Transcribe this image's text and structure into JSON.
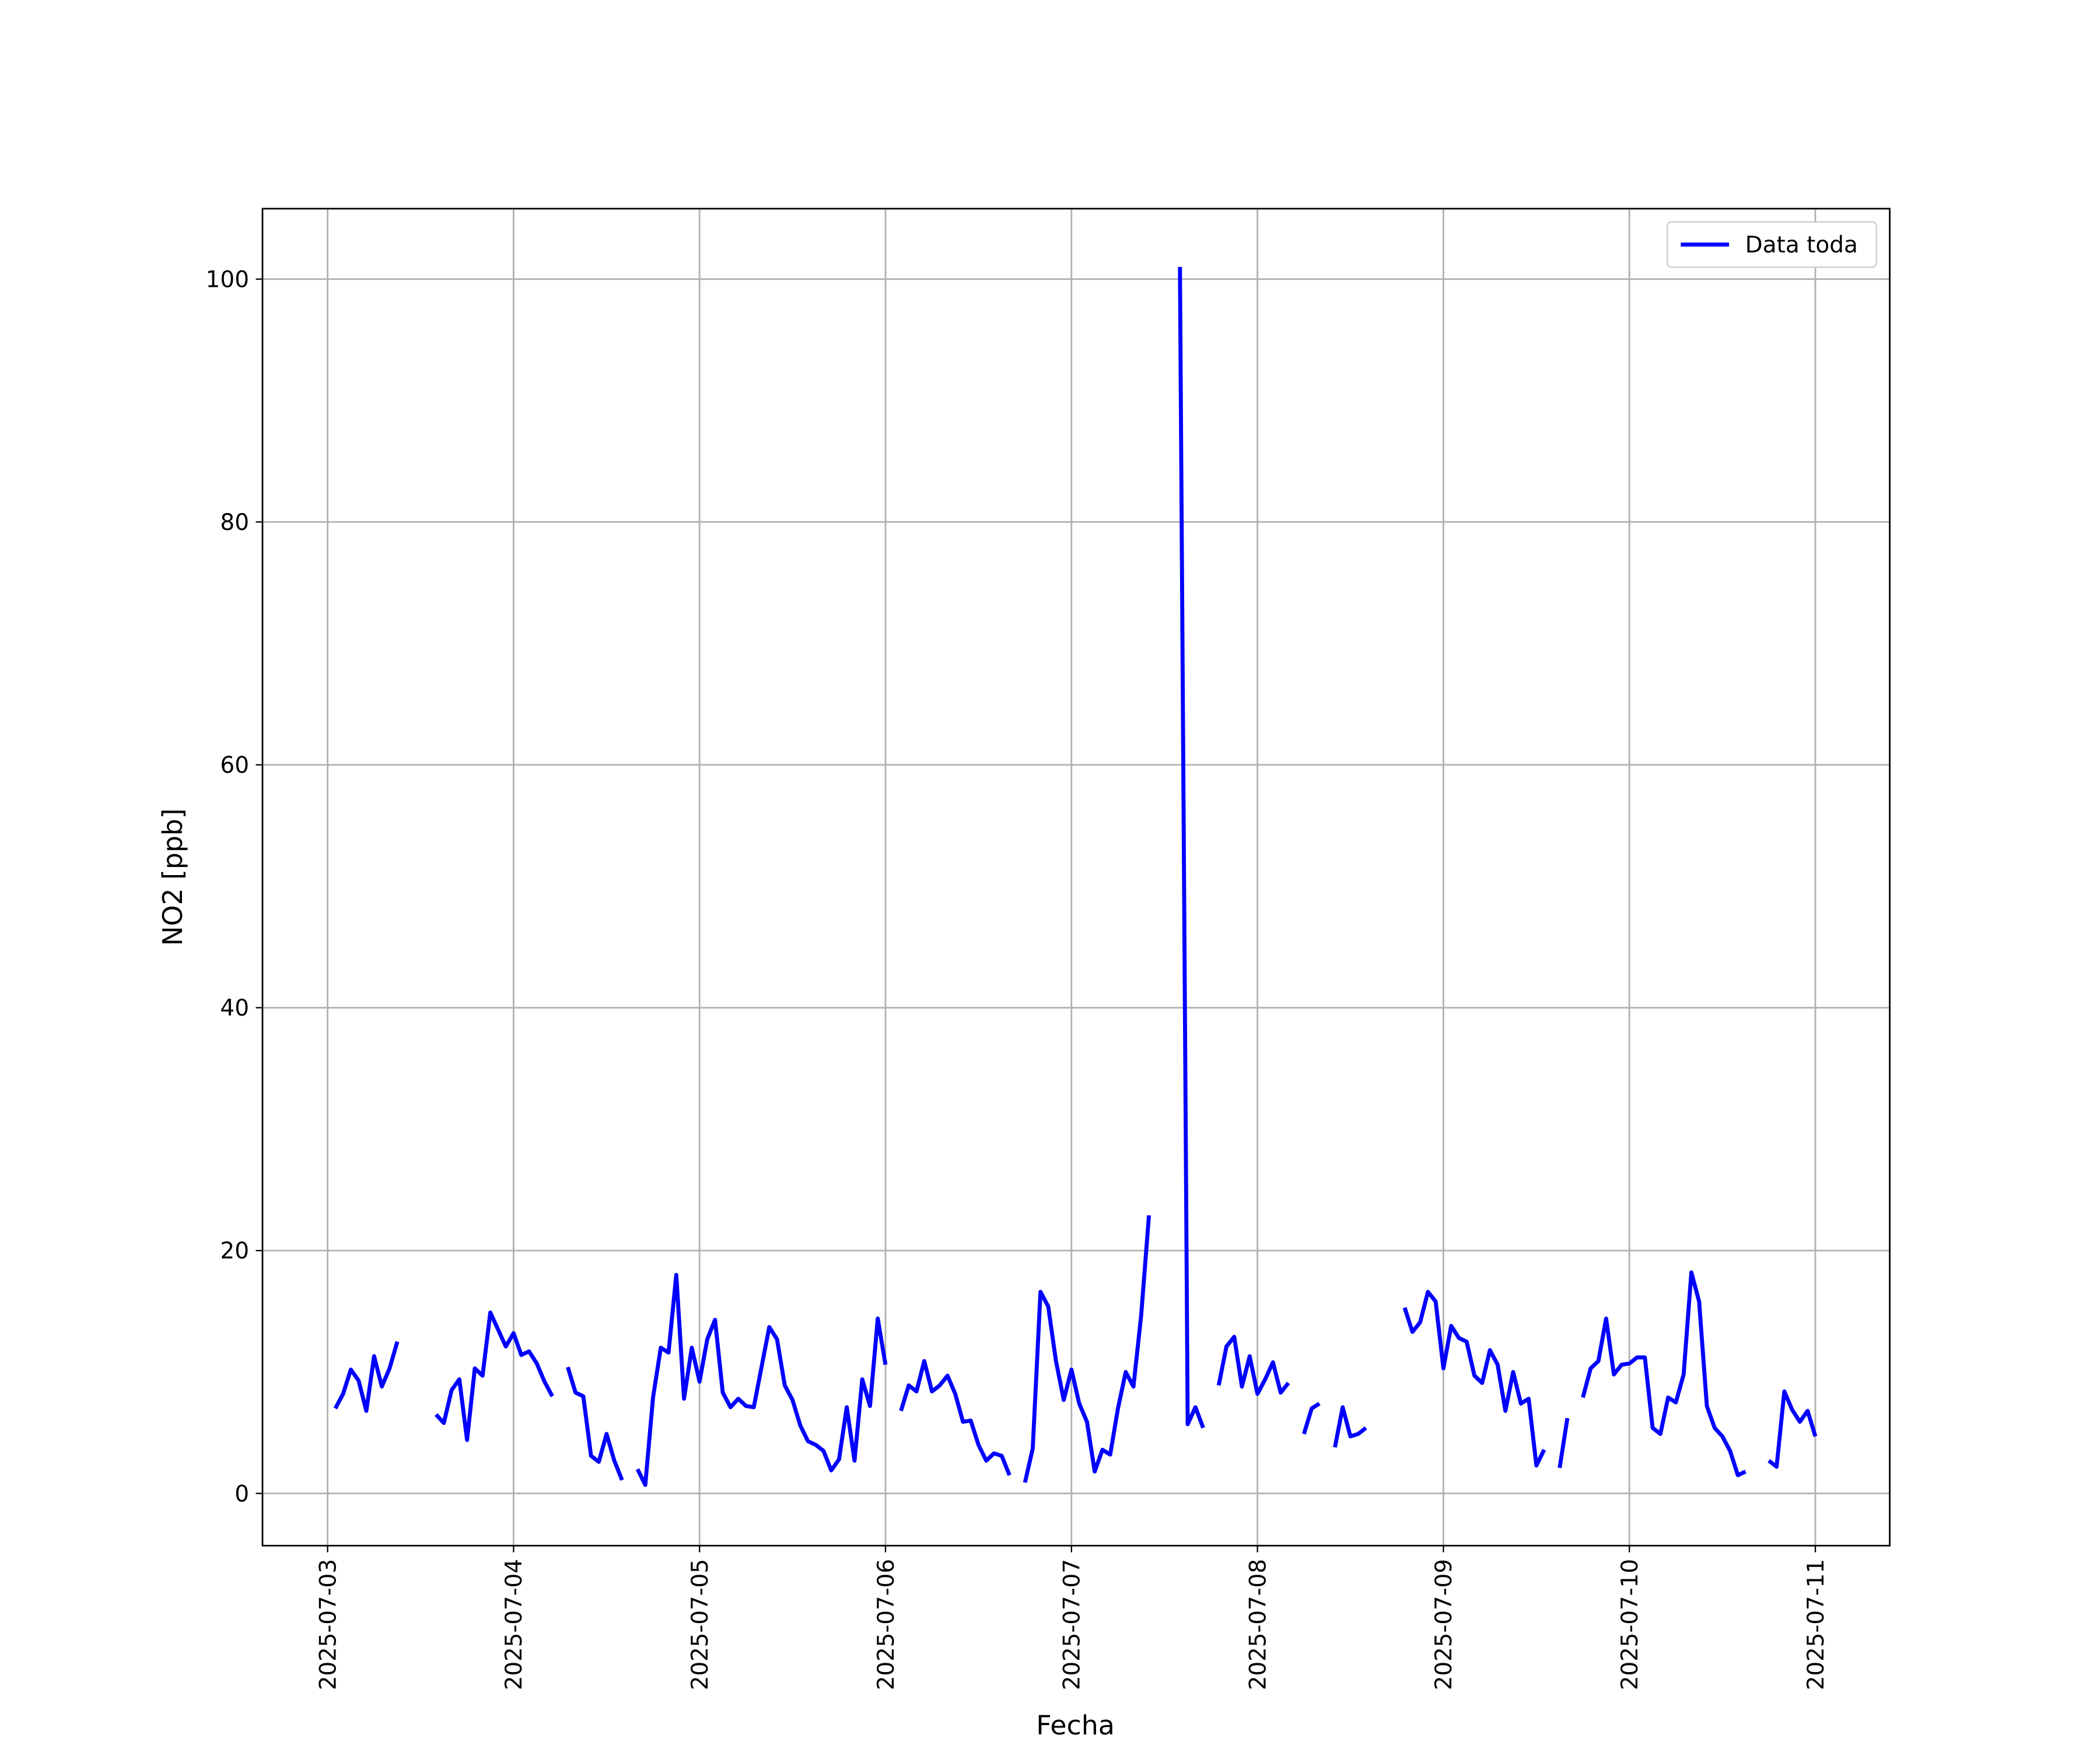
{
  "chart_data": {
    "type": "line",
    "xlabel": "Fecha",
    "ylabel": "NO2 [ppb]",
    "grid": true,
    "legend": "upper right",
    "xlim": [
      "2025-07-02T15:36",
      "2025-07-11T09:36"
    ],
    "xticks": [
      "2025-07-03",
      "2025-07-04",
      "2025-07-05",
      "2025-07-06",
      "2025-07-07",
      "2025-07-08",
      "2025-07-09",
      "2025-07-10",
      "2025-07-11"
    ],
    "ylim": [
      -4.3,
      105.8
    ],
    "yticks": [
      0,
      20,
      40,
      60,
      80,
      100
    ],
    "x": [
      "2025-07-03T01:00",
      "2025-07-03T02:00",
      "2025-07-03T03:00",
      "2025-07-03T04:00",
      "2025-07-03T05:00",
      "2025-07-03T06:00",
      "2025-07-03T07:00",
      "2025-07-03T08:00",
      "2025-07-03T09:00",
      "2025-07-03T10:00",
      "2025-07-03T11:00",
      "2025-07-03T12:00",
      "2025-07-03T13:00",
      "2025-07-03T14:00",
      "2025-07-03T15:00",
      "2025-07-03T16:00",
      "2025-07-03T17:00",
      "2025-07-03T18:00",
      "2025-07-03T19:00",
      "2025-07-03T20:00",
      "2025-07-03T21:00",
      "2025-07-03T22:00",
      "2025-07-03T23:00",
      "2025-07-04T00:00",
      "2025-07-04T01:00",
      "2025-07-04T02:00",
      "2025-07-04T03:00",
      "2025-07-04T04:00",
      "2025-07-04T05:00",
      "2025-07-04T06:00",
      "2025-07-04T07:00",
      "2025-07-04T08:00",
      "2025-07-04T09:00",
      "2025-07-04T10:00",
      "2025-07-04T11:00",
      "2025-07-04T12:00",
      "2025-07-04T13:00",
      "2025-07-04T14:00",
      "2025-07-04T15:00",
      "2025-07-04T16:00",
      "2025-07-04T17:00",
      "2025-07-04T18:00",
      "2025-07-04T19:00",
      "2025-07-04T20:00",
      "2025-07-04T21:00",
      "2025-07-04T22:00",
      "2025-07-04T23:00",
      "2025-07-05T00:00",
      "2025-07-05T01:00",
      "2025-07-05T02:00",
      "2025-07-05T03:00",
      "2025-07-05T04:00",
      "2025-07-05T05:00",
      "2025-07-05T06:00",
      "2025-07-05T07:00",
      "2025-07-05T08:00",
      "2025-07-05T09:00",
      "2025-07-05T10:00",
      "2025-07-05T11:00",
      "2025-07-05T12:00",
      "2025-07-05T13:00",
      "2025-07-05T14:00",
      "2025-07-05T15:00",
      "2025-07-05T16:00",
      "2025-07-05T17:00",
      "2025-07-05T18:00",
      "2025-07-05T19:00",
      "2025-07-05T20:00",
      "2025-07-05T21:00",
      "2025-07-05T22:00",
      "2025-07-05T23:00",
      "2025-07-06T00:00",
      "2025-07-06T01:00",
      "2025-07-06T02:00",
      "2025-07-06T03:00",
      "2025-07-06T04:00",
      "2025-07-06T05:00",
      "2025-07-06T06:00",
      "2025-07-06T07:00",
      "2025-07-06T08:00",
      "2025-07-06T09:00",
      "2025-07-06T10:00",
      "2025-07-06T11:00",
      "2025-07-06T12:00",
      "2025-07-06T13:00",
      "2025-07-06T14:00",
      "2025-07-06T15:00",
      "2025-07-06T16:00",
      "2025-07-06T17:00",
      "2025-07-06T18:00",
      "2025-07-06T19:00",
      "2025-07-06T20:00",
      "2025-07-06T21:00",
      "2025-07-06T22:00",
      "2025-07-06T23:00",
      "2025-07-07T00:00",
      "2025-07-07T01:00",
      "2025-07-07T02:00",
      "2025-07-07T03:00",
      "2025-07-07T04:00",
      "2025-07-07T05:00",
      "2025-07-07T06:00",
      "2025-07-07T07:00",
      "2025-07-07T08:00",
      "2025-07-07T09:00",
      "2025-07-07T10:00",
      "2025-07-07T11:00",
      "2025-07-07T12:00",
      "2025-07-07T13:00",
      "2025-07-07T14:00",
      "2025-07-07T15:00",
      "2025-07-07T16:00",
      "2025-07-07T17:00",
      "2025-07-07T18:00",
      "2025-07-07T19:00",
      "2025-07-07T20:00",
      "2025-07-07T21:00",
      "2025-07-07T22:00",
      "2025-07-07T23:00",
      "2025-07-08T00:00",
      "2025-07-08T01:00",
      "2025-07-08T02:00",
      "2025-07-08T03:00",
      "2025-07-08T04:00",
      "2025-07-08T05:00",
      "2025-07-08T06:00",
      "2025-07-08T07:00",
      "2025-07-08T08:00",
      "2025-07-08T09:00",
      "2025-07-08T10:00",
      "2025-07-08T11:00",
      "2025-07-08T12:00",
      "2025-07-08T13:00",
      "2025-07-08T14:00",
      "2025-07-08T15:00",
      "2025-07-08T16:00",
      "2025-07-08T17:00",
      "2025-07-08T18:00",
      "2025-07-08T19:00",
      "2025-07-08T20:00",
      "2025-07-08T21:00",
      "2025-07-08T22:00",
      "2025-07-08T23:00",
      "2025-07-09T00:00",
      "2025-07-09T01:00",
      "2025-07-09T02:00",
      "2025-07-09T03:00",
      "2025-07-09T04:00",
      "2025-07-09T05:00",
      "2025-07-09T06:00",
      "2025-07-09T07:00",
      "2025-07-09T08:00",
      "2025-07-09T09:00",
      "2025-07-09T10:00",
      "2025-07-09T11:00",
      "2025-07-09T12:00",
      "2025-07-09T13:00",
      "2025-07-09T14:00",
      "2025-07-09T15:00",
      "2025-07-09T16:00",
      "2025-07-09T17:00",
      "2025-07-09T18:00",
      "2025-07-09T19:00",
      "2025-07-09T20:00",
      "2025-07-09T21:00",
      "2025-07-09T22:00",
      "2025-07-09T23:00",
      "2025-07-10T00:00",
      "2025-07-10T01:00",
      "2025-07-10T02:00",
      "2025-07-10T03:00",
      "2025-07-10T04:00",
      "2025-07-10T05:00",
      "2025-07-10T06:00",
      "2025-07-10T07:00",
      "2025-07-10T08:00",
      "2025-07-10T09:00",
      "2025-07-10T10:00",
      "2025-07-10T11:00",
      "2025-07-10T12:00",
      "2025-07-10T13:00",
      "2025-07-10T14:00",
      "2025-07-10T15:00",
      "2025-07-10T16:00",
      "2025-07-10T17:00",
      "2025-07-10T18:00",
      "2025-07-10T19:00",
      "2025-07-10T20:00",
      "2025-07-10T21:00",
      "2025-07-10T22:00",
      "2025-07-10T23:00",
      "2025-07-11T00:00"
    ],
    "series": [
      {
        "name": "Data toda",
        "color": "#0000ff",
        "values": [
          7.0,
          8.2,
          10.2,
          9.3,
          6.8,
          11.3,
          8.8,
          10.3,
          12.5,
          null,
          null,
          null,
          null,
          6.5,
          5.8,
          8.5,
          9.4,
          4.4,
          10.3,
          9.7,
          14.9,
          13.5,
          12.1,
          13.2,
          11.4,
          11.7,
          10.7,
          9.2,
          8.0,
          null,
          10.4,
          8.3,
          8.0,
          3.1,
          2.6,
          4.9,
          2.7,
          1.1,
          null,
          2.0,
          0.7,
          7.9,
          12.0,
          11.6,
          18.0,
          7.8,
          12.0,
          9.2,
          12.7,
          14.3,
          8.3,
          7.1,
          7.8,
          7.2,
          7.1,
          10.4,
          13.7,
          12.7,
          8.9,
          7.7,
          5.6,
          4.3,
          4.0,
          3.5,
          1.9,
          2.8,
          7.1,
          2.7,
          9.4,
          7.2,
          14.4,
          10.6,
          null,
          6.8,
          8.9,
          8.4,
          10.9,
          8.4,
          8.9,
          9.7,
          8.2,
          5.9,
          6.0,
          4.0,
          2.7,
          3.3,
          3.1,
          1.5,
          null,
          0.9,
          3.7,
          16.6,
          15.4,
          10.9,
          7.7,
          10.2,
          7.4,
          5.9,
          1.8,
          3.6,
          3.2,
          7.0,
          10.0,
          8.8,
          14.7,
          22.9,
          null,
          null,
          null,
          101.0,
          5.7,
          7.1,
          5.4,
          null,
          8.9,
          12.1,
          12.9,
          8.8,
          11.3,
          8.2,
          9.4,
          10.8,
          8.3,
          9.1,
          null,
          4.9,
          7.0,
          7.4,
          null,
          3.8,
          7.1,
          4.7,
          4.9,
          5.4,
          null,
          null,
          null,
          null,
          15.3,
          13.3,
          14.1,
          16.6,
          15.8,
          10.3,
          13.8,
          12.8,
          12.5,
          9.7,
          9.1,
          11.8,
          10.6,
          6.8,
          10.0,
          7.4,
          7.8,
          2.3,
          3.6,
          null,
          2.1,
          6.2,
          null,
          7.9,
          10.3,
          10.9,
          14.4,
          9.8,
          10.6,
          10.7,
          11.2,
          11.2,
          5.4,
          4.9,
          7.9,
          7.5,
          9.8,
          18.2,
          15.8,
          7.2,
          5.4,
          4.7,
          3.5,
          1.5,
          1.8,
          null,
          null,
          2.7,
          2.2,
          8.4,
          6.9,
          5.9,
          6.8,
          4.7
        ]
      }
    ]
  }
}
